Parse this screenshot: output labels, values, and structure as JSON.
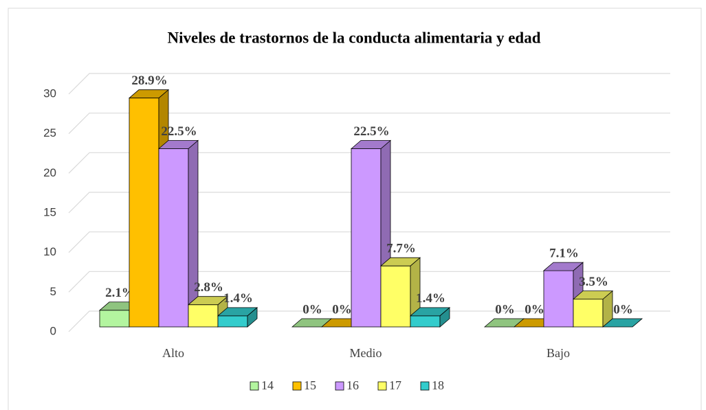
{
  "chart_data": {
    "type": "bar3d",
    "title": "Niveles de trastornos de la conducta alimentaria y edad",
    "categories": [
      "Alto",
      "Medio",
      "Bajo"
    ],
    "series": [
      {
        "name": "14",
        "color": "#b3f59f",
        "values": [
          2.1,
          0,
          0
        ],
        "value_labels": [
          "2.1%",
          "0%",
          "0%"
        ]
      },
      {
        "name": "15",
        "color": "#ffc000",
        "values": [
          28.9,
          0,
          0
        ],
        "value_labels": [
          "28.9%",
          "0%",
          "0%"
        ]
      },
      {
        "name": "16",
        "color": "#cc99ff",
        "values": [
          22.5,
          22.5,
          7.1
        ],
        "value_labels": [
          "22.5%",
          "22.5%",
          "7.1%"
        ]
      },
      {
        "name": "17",
        "color": "#ffff66",
        "values": [
          2.8,
          7.7,
          3.5
        ],
        "value_labels": [
          "2.8%",
          "7.7%",
          "3.5%"
        ]
      },
      {
        "name": "18",
        "color": "#33cccc",
        "values": [
          1.4,
          1.4,
          0
        ],
        "value_labels": [
          "1.4%",
          "1.4%",
          "0%"
        ]
      }
    ],
    "ylim": [
      0,
      30
    ],
    "yticks": [
      0,
      5,
      10,
      15,
      20,
      25,
      30
    ],
    "grid": true,
    "legend": "bottom"
  }
}
